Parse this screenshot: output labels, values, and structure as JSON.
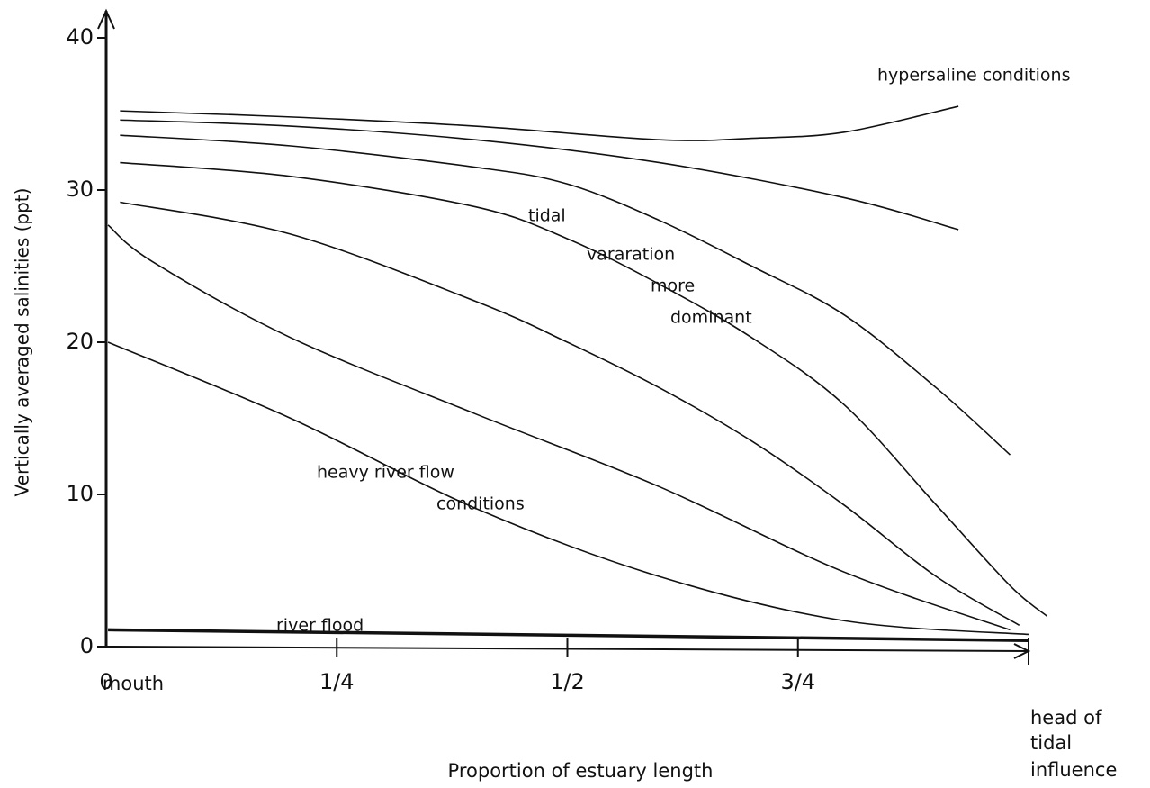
{
  "chart_data": {
    "type": "line",
    "xlabel": "Proportion of estuary length",
    "ylabel": "Vertically averaged salinities (ppt)",
    "xlim": [
      0,
      1
    ],
    "ylim": [
      0,
      40
    ],
    "xticks": [
      0,
      {
        "value": 0.25,
        "label": "1/4"
      },
      {
        "value": 0.5,
        "label": "1/2"
      },
      {
        "value": 0.75,
        "label": "3/4"
      }
    ],
    "yticks": [
      0,
      10,
      20,
      30,
      40
    ],
    "color": "#111111",
    "annotations": [
      "mouth",
      "head of",
      "tidal",
      "influence",
      "hypersaline conditions",
      "tidal",
      "vararation",
      "more",
      "dominant",
      "heavy river flow",
      "conditions",
      "river flood"
    ],
    "series": [
      {
        "x": [
          0.015,
          0.2,
          0.4,
          0.6,
          0.7,
          0.8,
          0.924
        ],
        "values": [
          35.2,
          34.8,
          34.2,
          33.3,
          33.4,
          33.8,
          35.5
        ]
      },
      {
        "x": [
          0.015,
          0.2,
          0.4,
          0.6,
          0.8,
          0.924
        ],
        "values": [
          34.6,
          34.2,
          33.3,
          31.8,
          29.5,
          27.4
        ]
      },
      {
        "x": [
          0.015,
          0.2,
          0.4,
          0.5,
          0.6,
          0.7,
          0.8,
          0.9,
          0.98
        ],
        "values": [
          33.6,
          32.9,
          31.5,
          30.4,
          28.0,
          25.0,
          21.8,
          17.0,
          12.6
        ]
      },
      {
        "x": [
          0.015,
          0.2,
          0.4,
          0.5,
          0.6,
          0.7,
          0.8,
          0.9,
          0.98,
          1.02
        ],
        "values": [
          31.8,
          30.9,
          28.9,
          26.8,
          23.8,
          20.3,
          15.9,
          9.3,
          4.0,
          2.0
        ]
      },
      {
        "x": [
          0.015,
          0.2,
          0.4,
          0.5,
          0.6,
          0.7,
          0.8,
          0.9,
          0.99
        ],
        "values": [
          29.2,
          27.1,
          22.7,
          20.0,
          17.0,
          13.5,
          9.3,
          4.6,
          1.4
        ]
      },
      {
        "x": [
          0.002,
          0.05,
          0.2,
          0.4,
          0.6,
          0.8,
          0.98
        ],
        "values": [
          27.7,
          25.3,
          20.3,
          15.3,
          10.5,
          4.9,
          1.1
        ]
      },
      {
        "x": [
          0.002,
          0.2,
          0.4,
          0.6,
          0.8,
          1.0
        ],
        "values": [
          20.0,
          15.0,
          9.1,
          4.6,
          1.7,
          0.8
        ]
      },
      {
        "x": [
          0.002,
          1.0
        ],
        "values": [
          1.1,
          0.4
        ]
      }
    ]
  }
}
